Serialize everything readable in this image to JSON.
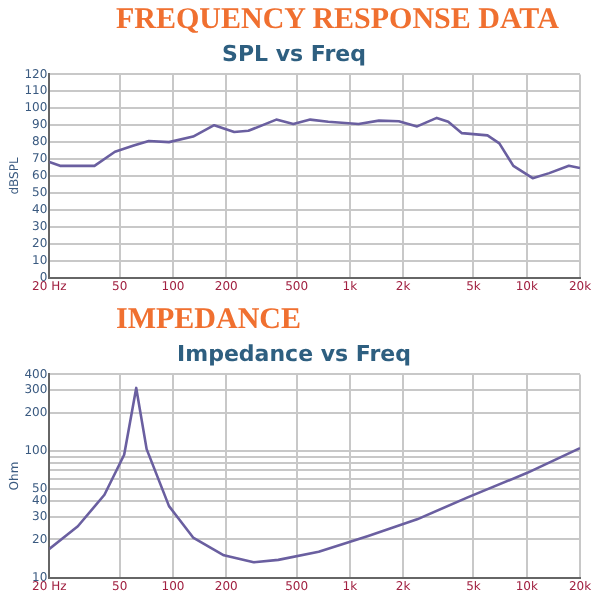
{
  "chart_data": [
    {
      "type": "line",
      "title": "FREQUENCY RESPONSE DATA",
      "subtitle": "SPL vs Freq",
      "ylabel": "dBSPL",
      "log": "x",
      "grid": true,
      "legend": false,
      "marker": "none",
      "line_style": "solid",
      "xlim": [
        20,
        20000
      ],
      "xticks": [
        {
          "value": 20,
          "label": "20 Hz"
        },
        50,
        100,
        200,
        500,
        {
          "value": 1000,
          "label": "1k"
        },
        {
          "value": 2000,
          "label": "2k"
        },
        {
          "value": 5000,
          "label": "5k"
        },
        {
          "value": 10000,
          "label": "10k"
        },
        {
          "value": 20000,
          "label": "20k"
        }
      ],
      "ylim": [
        0,
        120
      ],
      "yticks": [
        0,
        10,
        20,
        30,
        40,
        50,
        60,
        70,
        80,
        90,
        100,
        110,
        120
      ],
      "series": [
        {
          "color": "#6a5fa0",
          "x": [
            20,
            23,
            36,
            47,
            60,
            73,
            95,
            130,
            171,
            222,
            267,
            384,
            479,
            597,
            755,
            1120,
            1460,
            1890,
            2400,
            3100,
            3600,
            4300,
            6000,
            7000,
            8400,
            10800,
            13400,
            17300,
            20000
          ],
          "values": [
            68.3,
            66,
            66,
            74.3,
            78,
            80.7,
            80,
            83.3,
            90,
            86,
            86.7,
            93.3,
            90.7,
            93.3,
            92,
            90.7,
            92.7,
            92.3,
            89.3,
            94.3,
            92,
            85.3,
            84,
            79.3,
            66,
            58.7,
            61.7,
            66,
            64.7
          ]
        }
      ]
    },
    {
      "type": "line",
      "title": "IMPEDANCE",
      "subtitle": "Impedance vs Freq",
      "ylabel": "Ohm",
      "log": "xy",
      "grid": true,
      "legend": false,
      "marker": "none",
      "line_style": "solid",
      "xlim": [
        20,
        20000
      ],
      "xticks": [
        {
          "value": 20,
          "label": "20 Hz"
        },
        50,
        100,
        200,
        500,
        {
          "value": 1000,
          "label": "1k"
        },
        {
          "value": 2000,
          "label": "2k"
        },
        {
          "value": 5000,
          "label": "5k"
        },
        {
          "value": 10000,
          "label": "10k"
        },
        {
          "value": 20000,
          "label": "20k"
        }
      ],
      "ylim": [
        10,
        400
      ],
      "yticks": [
        10,
        20,
        30,
        40,
        50,
        {
          "value": 60,
          "label": null
        },
        {
          "value": 70,
          "label": null
        },
        {
          "value": 80,
          "label": null
        },
        {
          "value": 90,
          "label": null
        },
        100,
        200,
        300,
        400
      ],
      "series": [
        {
          "color": "#6a5fa0",
          "x": [
            20,
            29,
            41,
            53,
            62,
            71,
            95,
            130,
            194,
            286,
            394,
            667,
            1270,
            2400,
            4600,
            10000,
            20000
          ],
          "values": [
            16.8,
            25.4,
            45,
            93,
            313,
            103,
            36.6,
            20.7,
            15,
            13.2,
            13.8,
            16,
            21.3,
            28.8,
            42.7,
            66.7,
            105
          ]
        }
      ]
    }
  ]
}
